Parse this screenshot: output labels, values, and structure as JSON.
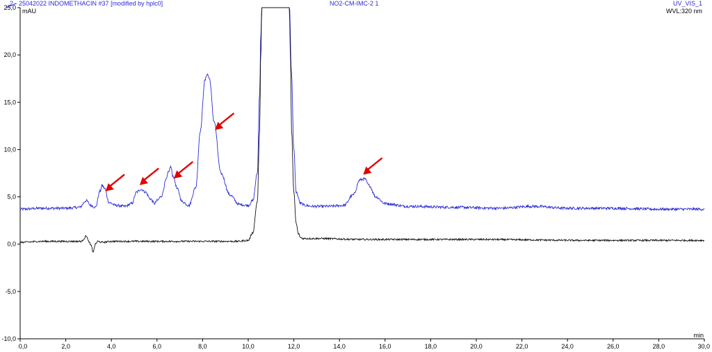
{
  "header": {
    "left": "2 - 25042022 INDOMETHACIN #37 [modified by hplc0]",
    "center": "NO2-CM-IMC-2 1",
    "right": "UV_VIS_1",
    "wavelength": "WVL:320 nm"
  },
  "colors": {
    "sample_trace": "#2a2ad8",
    "blank_trace": "#111111",
    "arrows": "#e00000",
    "axes": "#000000"
  },
  "chart_data": {
    "type": "line",
    "ylabel": "mAU",
    "xlabel": "min",
    "xlim": [
      0,
      30
    ],
    "ylim": [
      -10,
      25
    ],
    "x_ticks": [
      "0,0",
      "2,0",
      "4,0",
      "6,0",
      "8,0",
      "10,0",
      "12,0",
      "14,0",
      "16,0",
      "18,0",
      "20,0",
      "22,0",
      "24,0",
      "26,0",
      "28,0",
      "30,0"
    ],
    "y_ticks": [
      "-10,0",
      "-5,0",
      "0,0",
      "5,0",
      "10,0",
      "15,0",
      "20,0",
      "25,0"
    ],
    "grid": false,
    "series": [
      {
        "name": "2 - 25042022 INDOMETHACIN #37 [modified by hplc0]",
        "color": "#2a2ad8",
        "x": [
          0.0,
          1.0,
          2.0,
          2.6,
          2.9,
          3.1,
          3.3,
          3.5,
          3.6,
          3.7,
          3.9,
          4.2,
          4.6,
          4.9,
          5.1,
          5.3,
          5.5,
          5.7,
          5.9,
          6.0,
          6.2,
          6.4,
          6.5,
          6.6,
          6.7,
          6.9,
          7.1,
          7.4,
          7.7,
          7.9,
          8.1,
          8.2,
          8.3,
          8.5,
          8.8,
          9.2,
          9.6,
          10.0,
          10.2,
          10.4,
          10.5,
          10.55,
          10.6,
          11.0,
          11.8,
          11.9,
          12.0,
          12.1,
          12.3,
          12.5,
          12.8,
          13.5,
          14.2,
          14.6,
          14.9,
          15.1,
          15.3,
          15.6,
          16.0,
          17.0,
          19.0,
          21.0,
          22.5,
          24.0,
          26.0,
          28.0,
          30.0
        ],
        "y": [
          3.7,
          3.8,
          3.8,
          3.9,
          4.6,
          4.1,
          3.9,
          5.6,
          6.2,
          5.9,
          4.4,
          4.1,
          4.0,
          4.3,
          5.5,
          5.8,
          5.5,
          4.8,
          4.3,
          4.6,
          5.1,
          6.8,
          7.6,
          8.2,
          7.2,
          5.8,
          4.5,
          4.1,
          6.0,
          12.0,
          17.3,
          18.0,
          17.5,
          13.0,
          7.5,
          5.2,
          4.2,
          4.1,
          4.6,
          7.5,
          16.0,
          22.0,
          25.5,
          25.5,
          25.5,
          18.0,
          10.0,
          5.5,
          4.3,
          4.1,
          4.0,
          4.0,
          4.1,
          5.2,
          6.8,
          6.9,
          6.2,
          5.0,
          4.3,
          4.0,
          3.9,
          3.8,
          4.0,
          3.8,
          3.8,
          3.7,
          3.7
        ]
      },
      {
        "name": "",
        "color": "#111111",
        "x": [
          0.0,
          1.0,
          2.0,
          2.7,
          2.8,
          2.9,
          3.0,
          3.1,
          3.2,
          3.3,
          3.4,
          3.6,
          4.0,
          6.0,
          8.0,
          9.5,
          10.0,
          10.2,
          10.4,
          10.5,
          10.55,
          10.6,
          11.0,
          11.8,
          11.85,
          11.9,
          12.0,
          12.1,
          12.2,
          12.3,
          12.4,
          13.0,
          15.0,
          20.0,
          25.0,
          30.0
        ],
        "y": [
          0.2,
          0.3,
          0.3,
          0.3,
          0.6,
          0.9,
          0.3,
          -0.1,
          -0.8,
          0.0,
          0.3,
          0.2,
          0.3,
          0.3,
          0.3,
          0.3,
          0.4,
          1.2,
          4.5,
          12.0,
          20.0,
          25.5,
          25.5,
          25.5,
          20.0,
          12.0,
          5.5,
          2.2,
          1.1,
          0.7,
          0.6,
          0.6,
          0.5,
          0.5,
          0.4,
          0.4
        ]
      }
    ],
    "arrow_targets_x": [
      3.8,
      5.3,
      6.8,
      8.6,
      15.1
    ]
  }
}
